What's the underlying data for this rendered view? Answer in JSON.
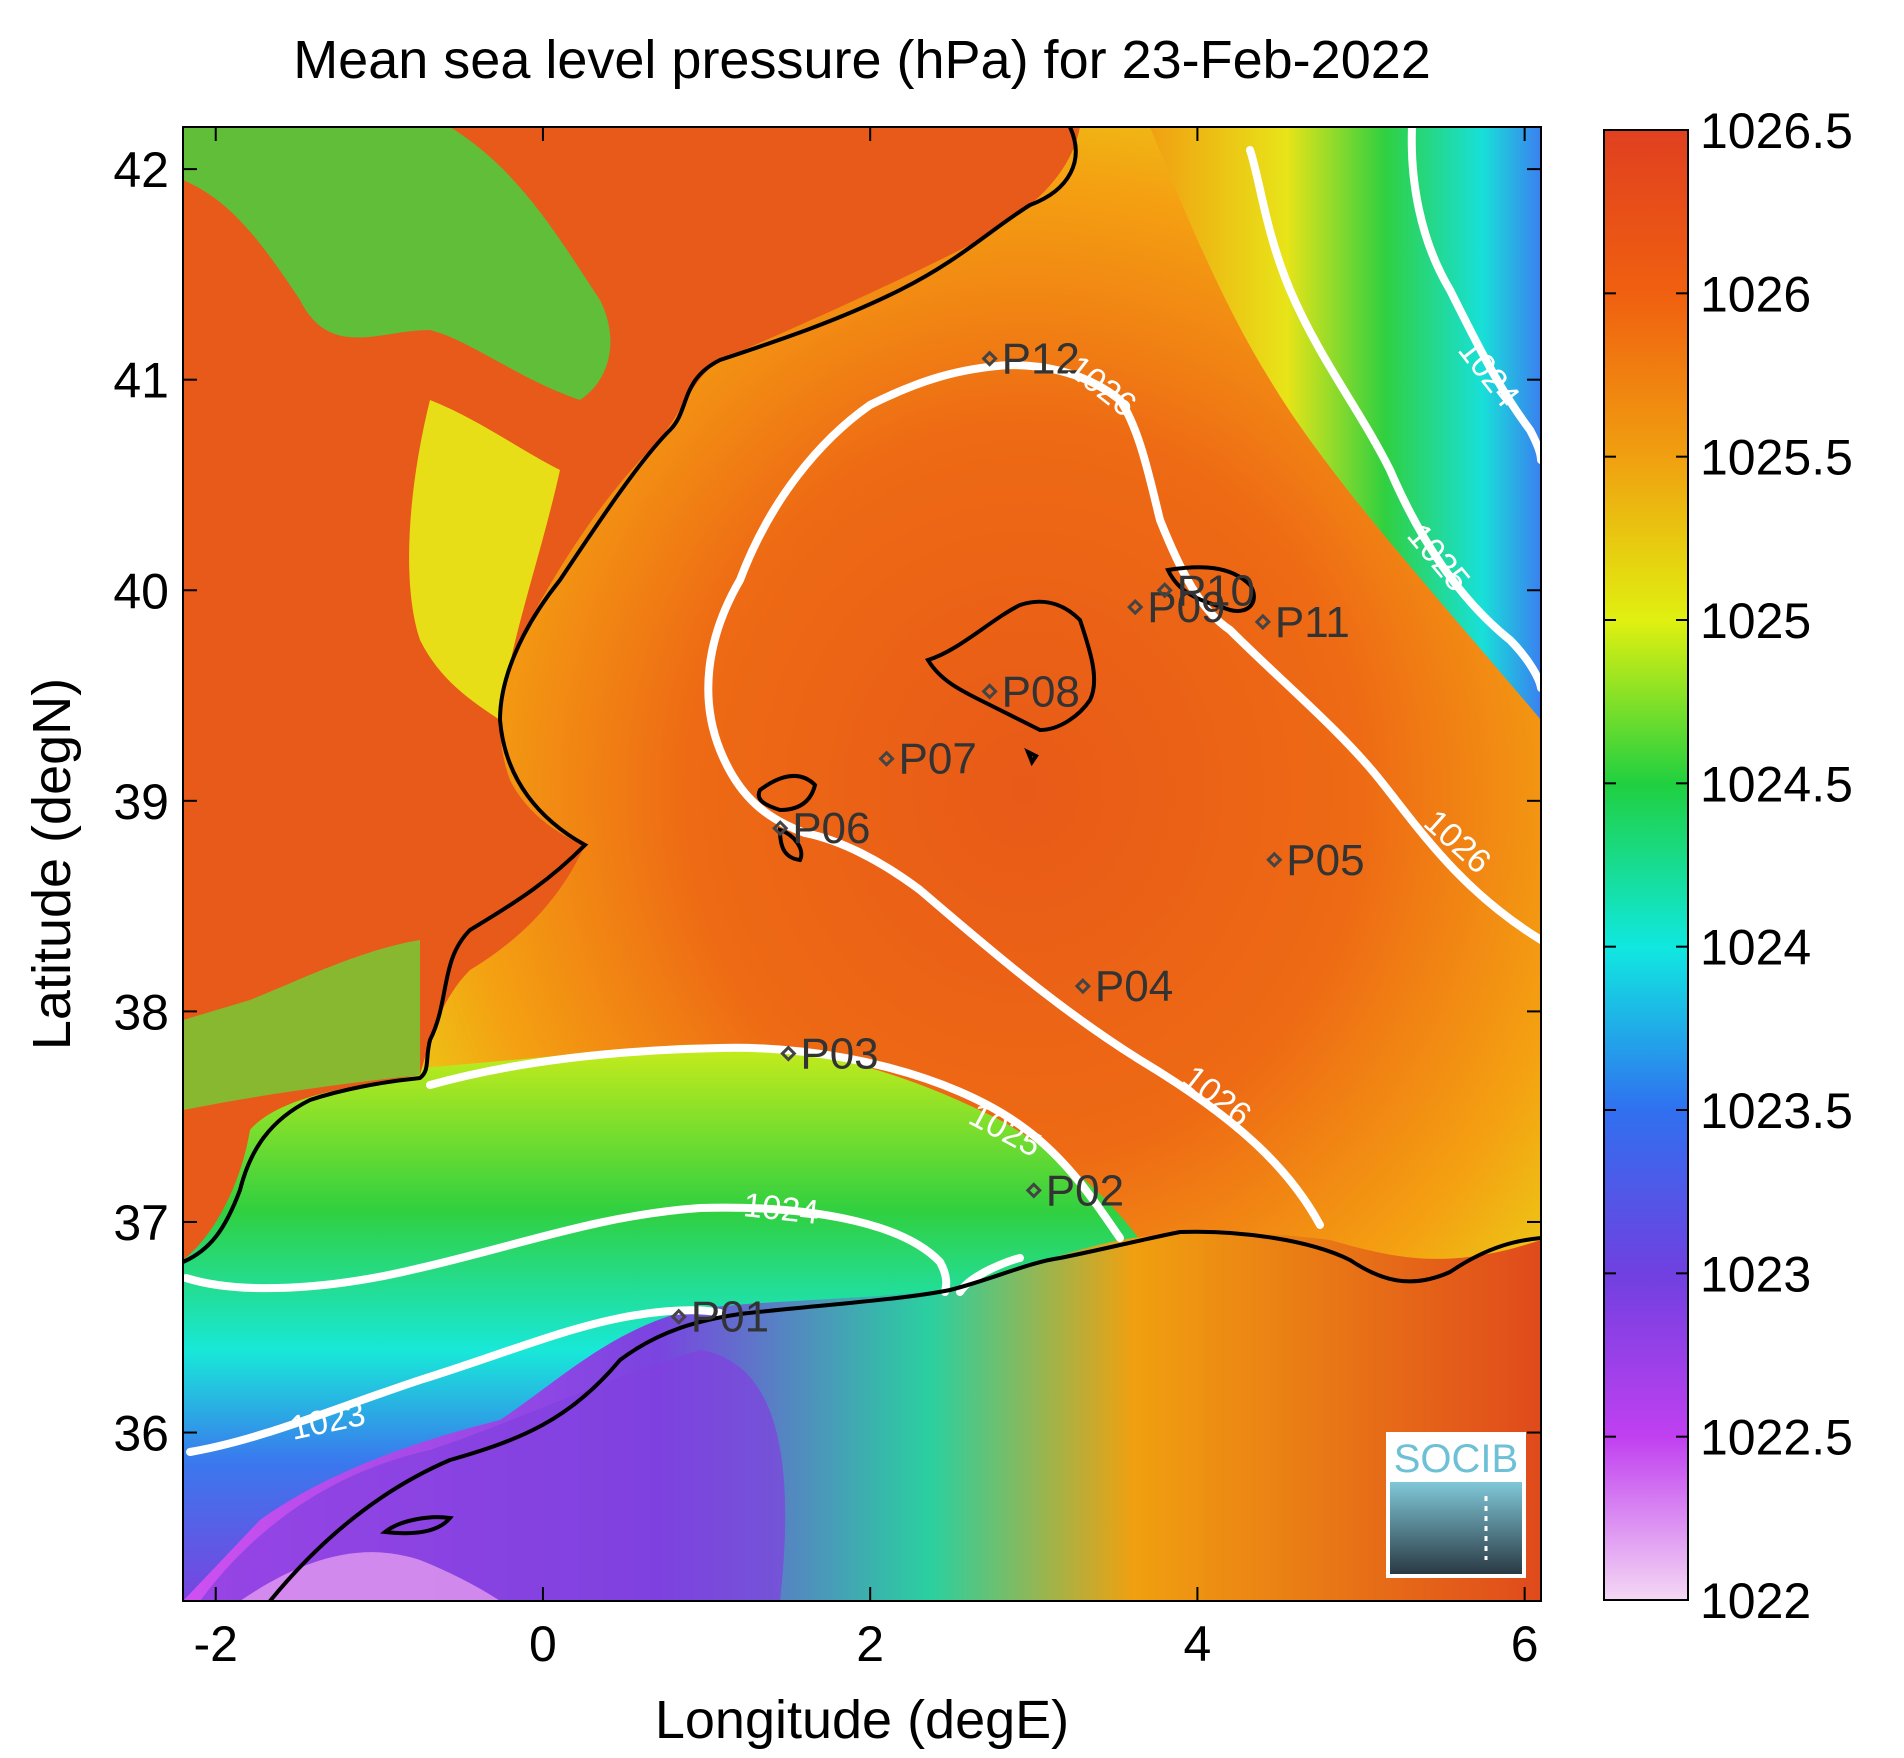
{
  "chart_data": {
    "type": "heatmap",
    "title": "Mean sea level pressure (hPa) for 23-Feb-2022",
    "xlabel": "Longitude (degE)",
    "ylabel": "Latitude (degN)",
    "xlim": [
      -2.2,
      6.1
    ],
    "ylim": [
      35.2,
      42.2
    ],
    "x_ticks": [
      "-2",
      "0",
      "2",
      "4",
      "6"
    ],
    "y_ticks": [
      "36",
      "37",
      "38",
      "39",
      "40",
      "41",
      "42"
    ],
    "colorbar": {
      "range": [
        1022,
        1026.5
      ],
      "ticks": [
        "1022",
        "1022.5",
        "1023",
        "1023.5",
        "1024",
        "1024.5",
        "1025",
        "1025.5",
        "1026",
        "1026.5"
      ],
      "colors": [
        "#f4d8f4",
        "#c040f0",
        "#7040e0",
        "#3070f0",
        "#10e8e0",
        "#20d040",
        "#e0f010",
        "#f0a010",
        "#f06010",
        "#e04020"
      ]
    },
    "contour_labels": [
      "1023",
      "1024",
      "1025",
      "1026",
      "1024",
      "1025",
      "1026",
      "1026"
    ],
    "stations": [
      {
        "name": "P01",
        "lon": 0.83,
        "lat": 36.55
      },
      {
        "name": "P02",
        "lon": 3.0,
        "lat": 37.15
      },
      {
        "name": "P03",
        "lon": 1.5,
        "lat": 37.8
      },
      {
        "name": "P04",
        "lon": 3.3,
        "lat": 38.12
      },
      {
        "name": "P05",
        "lon": 4.47,
        "lat": 38.72
      },
      {
        "name": "P06",
        "lon": 1.45,
        "lat": 38.87
      },
      {
        "name": "P07",
        "lon": 2.1,
        "lat": 39.2
      },
      {
        "name": "P08",
        "lon": 2.73,
        "lat": 39.52
      },
      {
        "name": "P09",
        "lon": 3.62,
        "lat": 39.92
      },
      {
        "name": "P10",
        "lon": 3.8,
        "lat": 40.0
      },
      {
        "name": "P11",
        "lon": 4.4,
        "lat": 39.85
      },
      {
        "name": "P12",
        "lon": 2.73,
        "lat": 41.1
      }
    ]
  },
  "logo": {
    "text": "SOCIB"
  }
}
